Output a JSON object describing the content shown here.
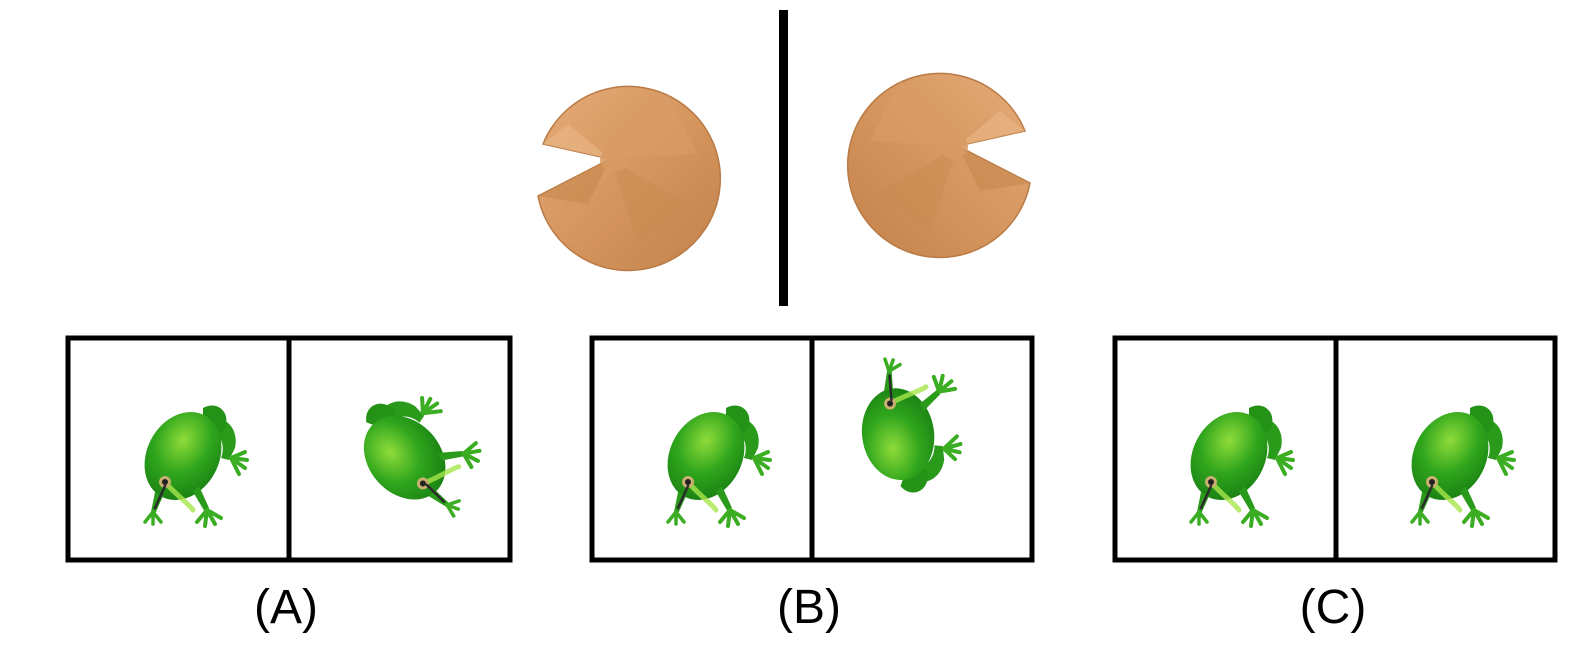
{
  "reference": {
    "left_icon": "pacman-disc-icon",
    "right_icon": "pacman-disc-icon",
    "color": "#d4945c"
  },
  "options": [
    {
      "label": "(A)",
      "left_icon": "frog-icon",
      "right_icon": "frog-icon"
    },
    {
      "label": "(B)",
      "left_icon": "frog-icon",
      "right_icon": "frog-icon"
    },
    {
      "label": "(C)",
      "left_icon": "frog-icon",
      "right_icon": "frog-icon"
    }
  ],
  "colors": {
    "frog_body": "#2fa51c",
    "frog_light": "#8fdc3a",
    "frog_dark": "#167a12",
    "frame": "#000000"
  }
}
